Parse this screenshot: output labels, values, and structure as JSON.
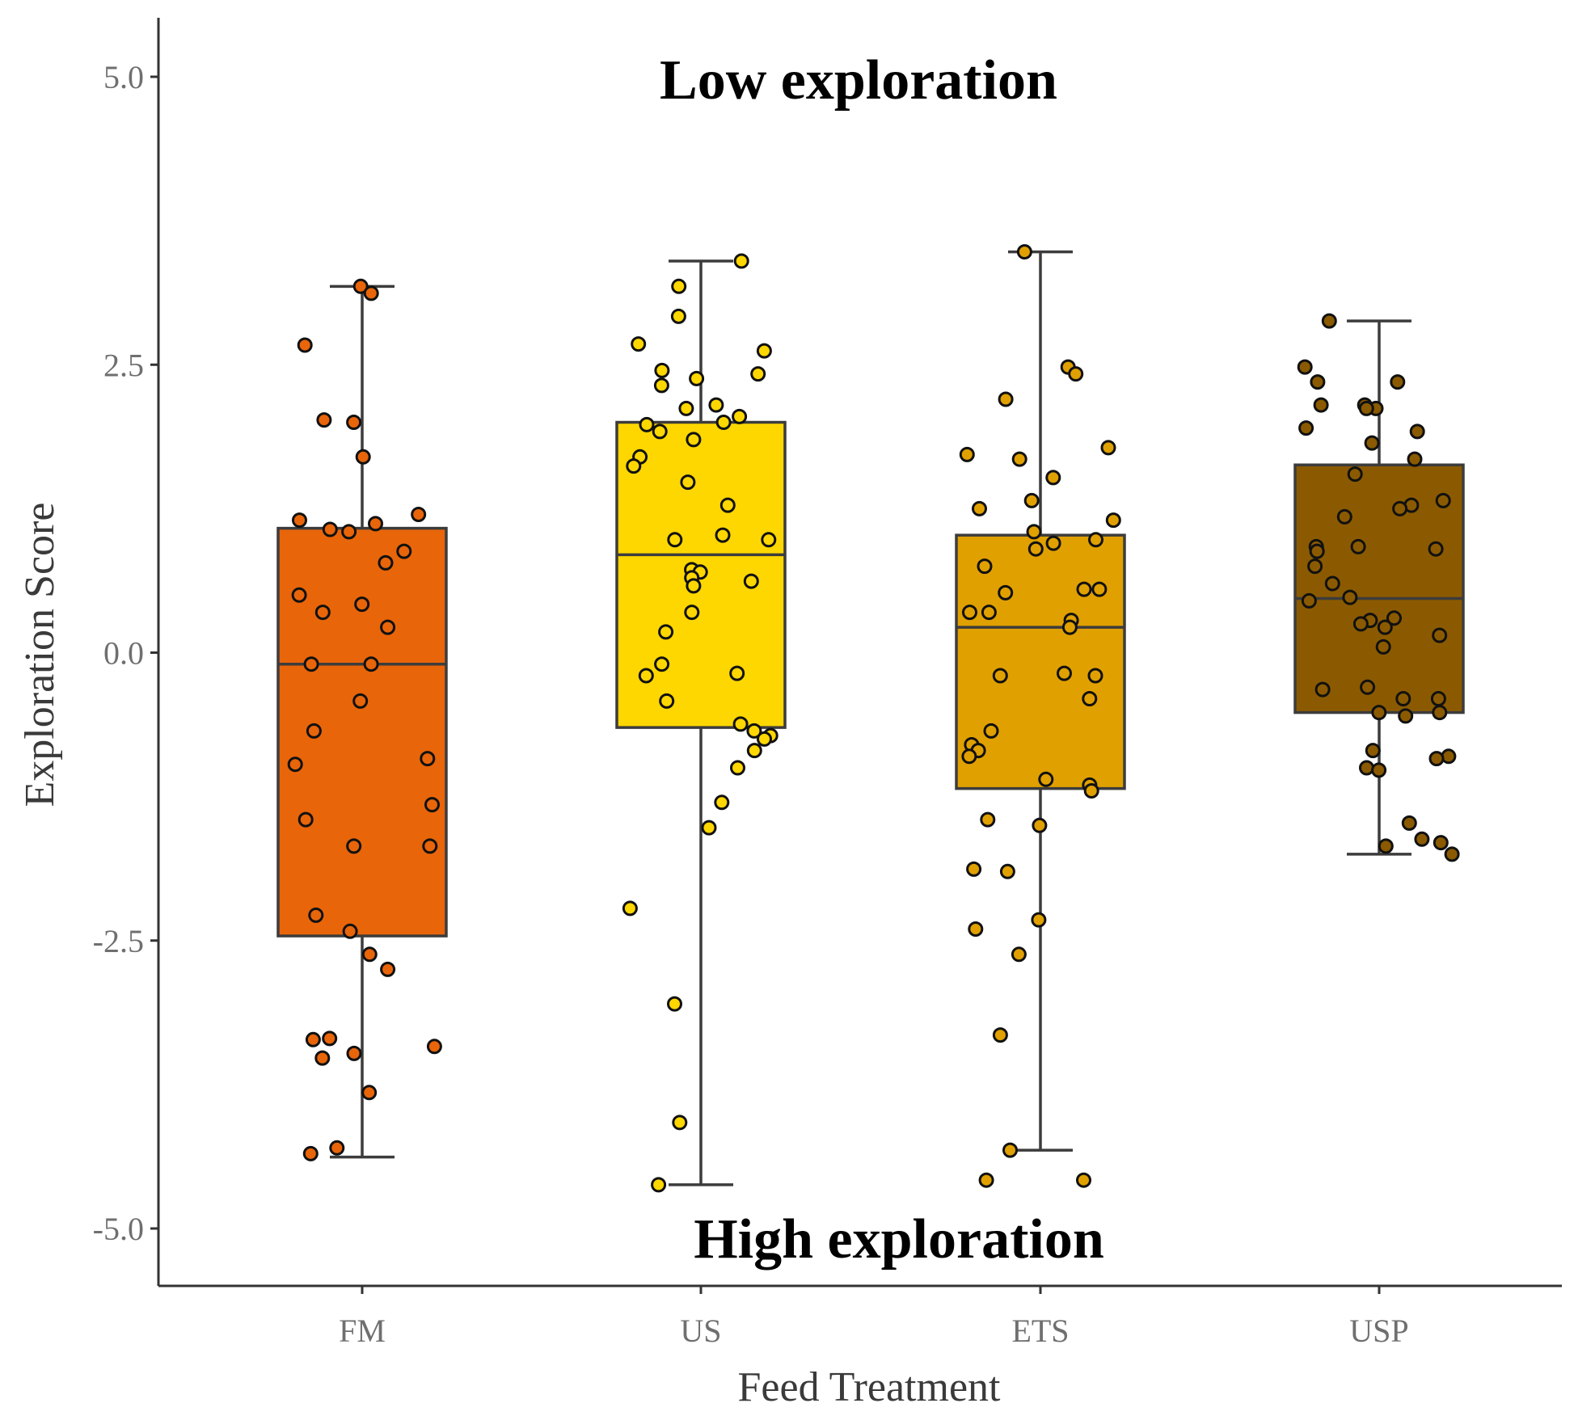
{
  "chart_data": {
    "type": "box",
    "title": "",
    "xlabel": "Feed Treatment",
    "ylabel": "Exploration Score",
    "ylim": [
      -5.5,
      5.5
    ],
    "yticks": [
      "5.0",
      "2.5",
      "0.0",
      "-2.5",
      "-5.0"
    ],
    "ytick_values": [
      5.0,
      2.5,
      0.0,
      -2.5,
      -5.0
    ],
    "annotations": {
      "top": "Low exploration",
      "bottom": "High exploration"
    },
    "grid": false,
    "legend": "none",
    "categories": [
      "FM",
      "US",
      "ETS",
      "USP"
    ],
    "series": [
      {
        "category": "FM",
        "color": "#E8650A",
        "whisker_low": -4.38,
        "q1": -2.46,
        "median": -0.1,
        "q3": 1.08,
        "whisker_high": 3.18,
        "points": [
          3.18,
          3.12,
          2.67,
          2.02,
          2.0,
          1.7,
          1.15,
          1.2,
          1.12,
          1.05,
          1.07,
          0.88,
          0.78,
          0.5,
          0.42,
          0.35,
          0.22,
          -0.1,
          -0.1,
          -0.42,
          -0.68,
          -0.97,
          -0.92,
          -1.32,
          -1.45,
          -1.68,
          -1.68,
          -2.28,
          -2.42,
          -2.62,
          -2.75,
          -3.35,
          -3.36,
          -3.42,
          -3.48,
          -3.52,
          -3.82,
          -4.3,
          -4.35
        ]
      },
      {
        "category": "US",
        "color": "#FFD700",
        "whisker_low": -4.62,
        "q1": -0.65,
        "median": 0.85,
        "q3": 2.0,
        "whisker_high": 3.4,
        "points": [
          3.4,
          3.18,
          2.92,
          2.68,
          2.62,
          2.45,
          2.42,
          2.38,
          2.32,
          2.15,
          2.12,
          2.05,
          2.0,
          1.98,
          1.92,
          1.85,
          1.7,
          1.62,
          1.48,
          1.28,
          1.02,
          0.98,
          0.98,
          0.72,
          0.7,
          0.65,
          0.62,
          0.58,
          0.35,
          0.18,
          -0.1,
          -0.18,
          -0.2,
          -0.42,
          -0.62,
          -0.68,
          -0.72,
          -0.75,
          -0.85,
          -1.0,
          -1.3,
          -1.52,
          -2.22,
          -3.05,
          -4.08,
          -4.62
        ]
      },
      {
        "category": "ETS",
        "color": "#E0A000",
        "whisker_low": -4.32,
        "q1": -1.18,
        "median": 0.22,
        "q3": 1.02,
        "whisker_high": 3.48,
        "points": [
          3.48,
          2.48,
          2.42,
          2.2,
          1.78,
          1.72,
          1.68,
          1.52,
          1.32,
          1.25,
          1.15,
          1.05,
          0.98,
          0.95,
          0.9,
          0.75,
          0.55,
          0.55,
          0.52,
          0.35,
          0.35,
          0.28,
          0.22,
          -0.18,
          -0.2,
          -0.2,
          -0.4,
          -0.68,
          -0.8,
          -0.85,
          -0.9,
          -1.1,
          -1.15,
          -1.2,
          -1.45,
          -1.5,
          -1.88,
          -1.9,
          -2.32,
          -2.4,
          -2.62,
          -3.32,
          -4.32,
          -4.58,
          -4.58
        ]
      },
      {
        "category": "USP",
        "color": "#8B5A00",
        "whisker_low": -1.75,
        "q1": -0.52,
        "median": 0.47,
        "q3": 1.63,
        "whisker_high": 2.88,
        "points": [
          2.88,
          2.48,
          2.35,
          2.35,
          2.15,
          2.15,
          2.12,
          2.12,
          1.95,
          1.92,
          1.82,
          1.68,
          1.55,
          1.32,
          1.28,
          1.25,
          1.18,
          0.92,
          0.92,
          0.9,
          0.88,
          0.75,
          0.6,
          0.48,
          0.45,
          0.3,
          0.28,
          0.25,
          0.22,
          0.15,
          0.05,
          -0.3,
          -0.32,
          -0.4,
          -0.4,
          -0.52,
          -0.52,
          -0.55,
          -0.85,
          -0.9,
          -0.92,
          -1.0,
          -1.02,
          -1.48,
          -1.62,
          -1.65,
          -1.68,
          -1.75
        ]
      }
    ]
  }
}
